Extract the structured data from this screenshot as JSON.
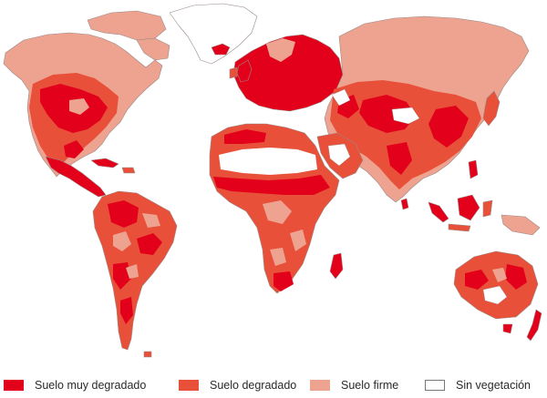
{
  "colors": {
    "very_degraded": "#e3001b",
    "degraded": "#e8503a",
    "firm": "#eda38f",
    "no_vegetation": "#ffffff",
    "outline": "#9a8a86"
  },
  "legend": [
    {
      "label": "Suelo muy degradado",
      "color": "#e3001b",
      "name": "very-degraded"
    },
    {
      "label": "Suelo degradado",
      "color": "#e8503a",
      "name": "degraded"
    },
    {
      "label": "Suelo firme",
      "color": "#eda38f",
      "name": "firm"
    },
    {
      "label": "Sin vegetación",
      "color": "#ffffff",
      "name": "no-vegetation"
    }
  ]
}
